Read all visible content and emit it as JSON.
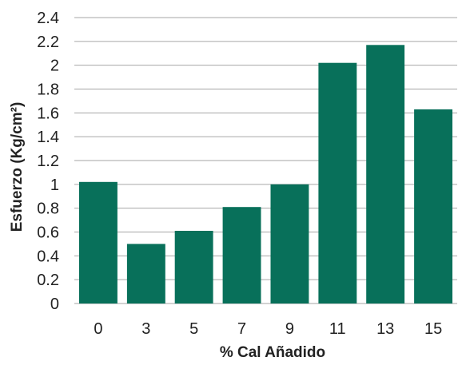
{
  "chart_data": {
    "type": "bar",
    "categories": [
      "0",
      "3",
      "5",
      "7",
      "9",
      "11",
      "13",
      "15"
    ],
    "values": [
      1.02,
      0.5,
      0.61,
      0.81,
      1.0,
      2.02,
      2.17,
      1.63
    ],
    "xlabel": "% Cal Añadido",
    "ylabel": "Esfuerzo (Kg/cm²)",
    "ylim": [
      0,
      2.4
    ],
    "yticks": [
      "0",
      "0.2",
      "0.4",
      "0.6",
      "0.8",
      "1",
      "1.2",
      "1.4",
      "1.6",
      "1.8",
      "2",
      "2.2",
      "2.4"
    ],
    "grid": true,
    "colors": {
      "bar": "#08705a",
      "grid": "#a6a6a6",
      "text": "#222222"
    }
  }
}
